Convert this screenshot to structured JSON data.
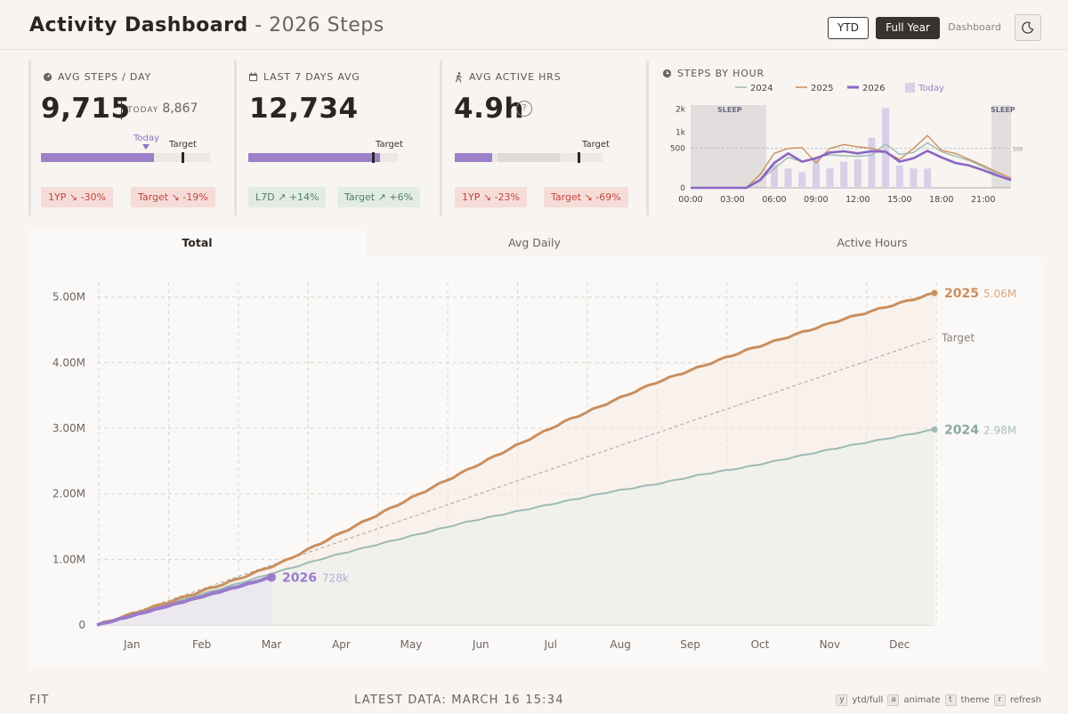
{
  "header": {
    "title": "Activity Dashboard",
    "subtitle": " - 2026 Steps",
    "buttons": {
      "ytd": "YTD",
      "full_year": "Full Year",
      "dashboard": "Dashboard"
    }
  },
  "kpi": [
    {
      "label": "AVG STEPS / DAY",
      "value": "9,715",
      "today_label": "TODAY",
      "today_value": "8,867",
      "bar_fraction": 0.67,
      "target_fraction": 0.83,
      "today_marker": "Today",
      "target_label": "Target",
      "badges": [
        {
          "text": "1YP ↘ -30%",
          "kind": "red"
        },
        {
          "text": "Target ↘ -19%",
          "kind": "red"
        }
      ]
    },
    {
      "label": "LAST 7 DAYS AVG",
      "value": "12,734",
      "bar_fraction": 0.88,
      "target_fraction": 0.83,
      "target_label": "Target",
      "badges": [
        {
          "text": "L7D ↗ +14%",
          "kind": "green"
        },
        {
          "text": "Target ↗ +6%",
          "kind": "green"
        }
      ]
    },
    {
      "label": "AVG ACTIVE HRS",
      "value": "4.9h",
      "help": "?",
      "bar_fraction": 0.25,
      "target_fraction": 0.83,
      "target_label": "Target",
      "badges": [
        {
          "text": "1YP ↘ -23%",
          "kind": "red"
        },
        {
          "text": "Target ↘ -69%",
          "kind": "red"
        }
      ]
    }
  ],
  "hourly": {
    "title": "STEPS BY HOUR",
    "legend": [
      "2024",
      "2025",
      "2026",
      "Today"
    ],
    "yticks": [
      "0",
      "500",
      "1k",
      "2k"
    ],
    "xticks": [
      "00:00",
      "03:00",
      "06:00",
      "09:00",
      "12:00",
      "15:00",
      "18:00",
      "21:00"
    ],
    "sleep_label": "SLEEP",
    "ref_label": "500",
    "chart_data": {
      "type": "line",
      "x": [
        0,
        1,
        2,
        3,
        4,
        5,
        6,
        7,
        8,
        9,
        10,
        11,
        12,
        13,
        14,
        15,
        16,
        17,
        18,
        19,
        20,
        21,
        22,
        23
      ],
      "series": [
        {
          "name": "2024",
          "values": [
            0,
            0,
            0,
            0,
            0,
            20,
            120,
            300,
            220,
            300,
            350,
            330,
            320,
            340,
            620,
            360,
            400,
            650,
            420,
            320,
            240,
            140,
            60,
            20
          ]
        },
        {
          "name": "2025",
          "values": [
            0,
            0,
            0,
            0,
            0,
            60,
            380,
            500,
            520,
            200,
            500,
            600,
            540,
            500,
            420,
            260,
            500,
            880,
            450,
            380,
            260,
            160,
            80,
            30
          ]
        },
        {
          "name": "2026",
          "values": [
            0,
            0,
            0,
            0,
            0,
            20,
            200,
            380,
            220,
            280,
            400,
            430,
            380,
            430,
            420,
            220,
            280,
            440,
            300,
            200,
            160,
            100,
            50,
            20
          ]
        },
        {
          "name": "Today",
          "values": [
            0,
            0,
            0,
            0,
            0,
            0,
            180,
            120,
            80,
            280,
            120,
            220,
            260,
            800,
            2050,
            160,
            120,
            120,
            0,
            0,
            0,
            0,
            0,
            0
          ]
        }
      ]
    }
  },
  "tabs": {
    "total": "Total",
    "avg_daily": "Avg Daily",
    "active_hours": "Active Hours"
  },
  "main_chart": {
    "yticks": [
      "0",
      "1.00M",
      "2.00M",
      "3.00M",
      "4.00M",
      "5.00M"
    ],
    "xticks": [
      "Jan",
      "Feb",
      "Mar",
      "Apr",
      "May",
      "Jun",
      "Jul",
      "Aug",
      "Sep",
      "Oct",
      "Nov",
      "Dec"
    ],
    "labels": {
      "s2025": "2025",
      "v2025": "5.06M",
      "s2024": "2024",
      "v2024": "2.98M",
      "s2026": "2026",
      "v2026": "728k",
      "target": "Target"
    },
    "colors": {
      "2024": "#9fbab4",
      "2025": "#c98f5e",
      "2026": "#9b7bc9",
      "target": "#aaa29d"
    },
    "chart_data": {
      "type": "line",
      "x_unit": "month",
      "ylim": [
        0,
        5200000
      ],
      "series": [
        {
          "name": "2025",
          "end": 5060000,
          "curve": [
            0,
            0.045,
            0.09,
            0.137,
            0.19,
            0.26,
            0.33,
            0.4,
            0.47,
            0.54,
            0.61,
            0.67,
            0.73,
            0.78,
            0.83,
            0.875,
            0.92,
            0.96,
            1.0
          ]
        },
        {
          "name": "2024",
          "end": 2980000,
          "curve": [
            0,
            0.07,
            0.14,
            0.21,
            0.28,
            0.35,
            0.41,
            0.47,
            0.53,
            0.58,
            0.63,
            0.68,
            0.72,
            0.77,
            0.81,
            0.86,
            0.91,
            0.955,
            1.0
          ]
        },
        {
          "name": "2026",
          "end": 728000,
          "through": "Mar 16"
        },
        {
          "name": "Target",
          "end": 4380000
        }
      ]
    }
  },
  "footer": {
    "left": "FIT",
    "mid": "LATEST DATA: MARCH 16 15:34",
    "shortcuts": [
      {
        "key": "y",
        "label": "ytd/full"
      },
      {
        "key": "a",
        "label": "animate"
      },
      {
        "key": "t",
        "label": "theme"
      },
      {
        "key": "r",
        "label": "refresh"
      }
    ]
  }
}
